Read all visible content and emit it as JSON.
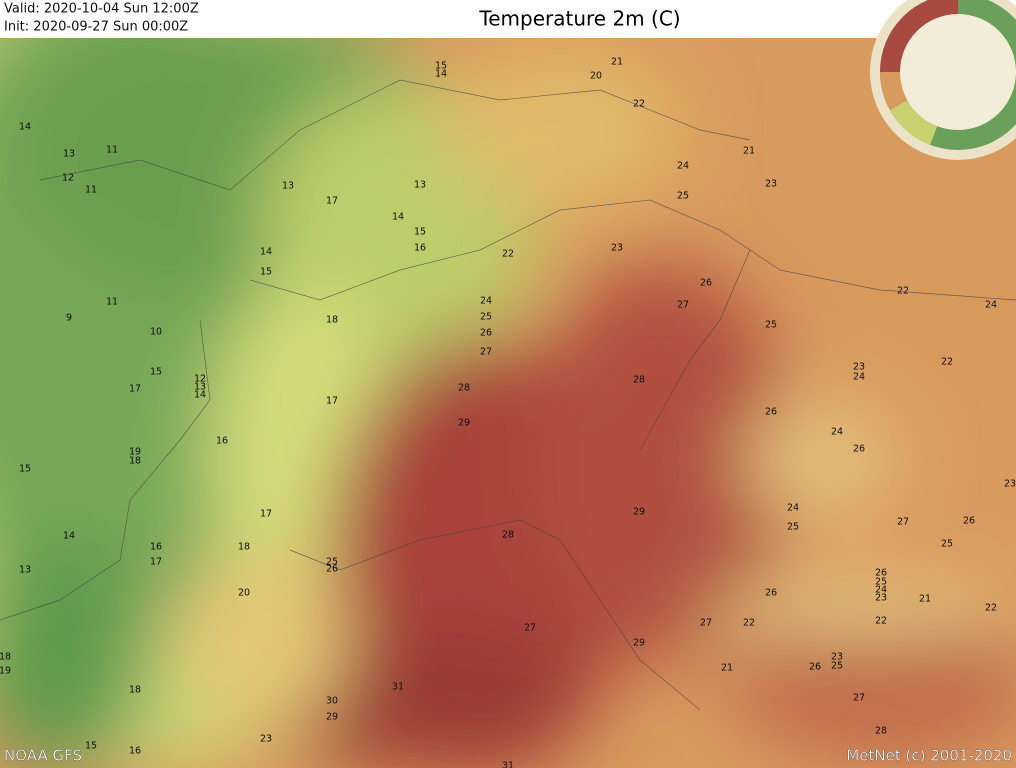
{
  "header": {
    "valid": "Valid: 2020-10-04 Sun  12:00Z",
    "init": "Init:   2020-09-27 Sun  00:00Z",
    "title": "Temperature 2m (C)"
  },
  "map": {
    "labels": [
      15,
      14,
      21,
      20,
      22,
      14,
      13,
      11,
      12,
      11,
      21,
      24,
      23,
      13,
      13,
      17,
      25,
      14,
      15,
      16,
      23,
      22,
      14,
      15,
      26,
      22,
      24,
      24,
      25,
      11,
      27,
      9,
      18,
      26,
      25,
      10,
      27,
      22,
      23,
      24,
      15,
      12,
      13,
      14,
      28,
      28,
      17,
      17,
      26,
      29,
      24,
      16,
      26,
      19,
      18,
      15,
      23,
      24,
      29,
      17,
      27,
      26,
      25,
      14,
      28,
      16,
      18,
      25,
      17,
      25,
      26,
      13,
      26,
      25,
      24,
      23,
      26,
      20,
      21,
      22,
      22,
      27,
      22,
      27,
      29,
      18,
      19,
      23,
      25,
      26,
      21,
      31,
      18,
      27,
      30,
      29,
      28,
      23,
      15,
      16,
      31
    ]
  },
  "footer": {
    "source": "NOAA GFS",
    "credit": "MetNet (c) 2001-2020"
  }
}
